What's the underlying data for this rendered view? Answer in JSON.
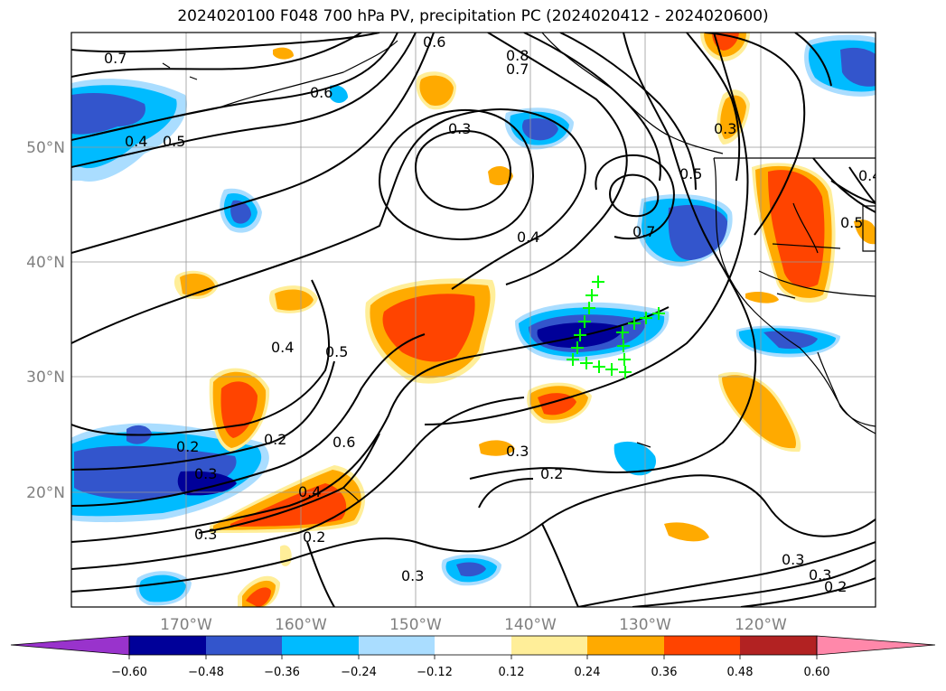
{
  "title": "2024020100 F048 700 hPa PV, precipitation PC (2024020412 - 2024020600)",
  "map": {
    "lat_labels": [
      "50°N",
      "40°N",
      "30°N",
      "20°N"
    ],
    "lon_labels": [
      "170°W",
      "160°W",
      "150°W",
      "140°W",
      "130°W",
      "120°W"
    ],
    "grid": true,
    "pv_contour_labels": [
      "0.7",
      "0.6",
      "0.8",
      "0.7",
      "0.6",
      "0.4",
      "0.5",
      "0.3",
      "0.3",
      "0.4",
      "0.7",
      "0.5",
      "0.5",
      "0.4",
      "0.4",
      "0.5",
      "0.6",
      "0.2",
      "0.2",
      "0.3",
      "0.4",
      "0.2",
      "0.3",
      "0.3",
      "0.2",
      "0.3",
      "0.3",
      "0.3",
      "0.2"
    ],
    "marker_color": "#00ff00"
  },
  "colorbar": {
    "ticks": [
      "−0.60",
      "−0.48",
      "−0.36",
      "−0.24",
      "−0.12",
      "0.12",
      "0.24",
      "0.36",
      "0.48",
      "0.60"
    ],
    "colors": [
      "#9933cc",
      "#000099",
      "#3355cc",
      "#00bbff",
      "#aaddff",
      "#ffffff",
      "#ffee99",
      "#ffaa00",
      "#ff4400",
      "#b22222",
      "#ff88aa"
    ]
  }
}
